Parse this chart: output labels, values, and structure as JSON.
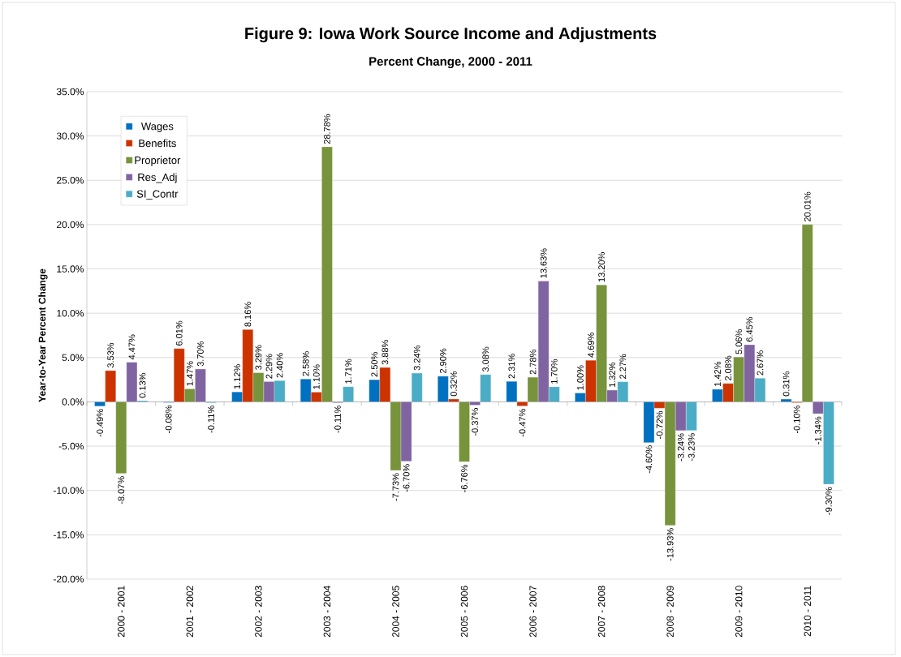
{
  "chart_data": {
    "type": "bar",
    "title": "Figure 9: Iowa Work Source Income and Adjustments",
    "subtitle": "Percent Change, 2000 - 2011",
    "ylabel": "Year-to-Year Percent Change",
    "categories": [
      "2000 - 2001",
      "2001 - 2002",
      "2002 - 2003",
      "2003 - 2004",
      "2004 - 2005",
      "2005 - 2006",
      "2006 - 2007",
      "2007 - 2008",
      "2008 - 2009",
      "2009 - 2010",
      "2010 - 2011"
    ],
    "series": [
      {
        "name": "Wages",
        "color": "#0070c0",
        "values": [
          -0.49,
          -0.08,
          1.12,
          2.58,
          2.5,
          2.9,
          2.31,
          1.0,
          -4.6,
          1.42,
          0.31
        ],
        "value_labels": [
          "-0.49%",
          "-0.08%",
          "1.12%",
          "2.58%",
          "2.50%",
          "2.90%",
          "2.31%",
          "1.00%",
          "-4.60%",
          "1.42%",
          "0.31%"
        ]
      },
      {
        "name": "Benefits",
        "color": "#cc3300",
        "values": [
          3.53,
          6.01,
          8.16,
          1.1,
          3.88,
          0.32,
          -0.47,
          4.69,
          -0.72,
          2.08,
          -0.1
        ],
        "value_labels": [
          "3.53%",
          "6.01%",
          "8.16%",
          "1.10%",
          "3.88%",
          "0.32%",
          "-0.47%",
          "4.69%",
          "-0.72%",
          "2.08%",
          "-0.10%"
        ]
      },
      {
        "name": "Proprietor",
        "color": "#77933c",
        "values": [
          -8.07,
          1.47,
          3.29,
          28.78,
          -7.73,
          -6.76,
          2.78,
          13.2,
          -13.93,
          5.06,
          20.01
        ],
        "value_labels": [
          "-8.07%",
          "1.47%",
          "3.29%",
          "28.78%",
          "-7.73%",
          "-6.76%",
          "2.78%",
          "13.20%",
          "-13.93%",
          "5.06%",
          "20.01%"
        ]
      },
      {
        "name": "Res_Adj",
        "color": "#8064a2",
        "values": [
          4.47,
          3.7,
          2.29,
          -0.11,
          -6.7,
          -0.37,
          13.63,
          1.32,
          -3.24,
          6.45,
          -1.34
        ],
        "value_labels": [
          "4.47%",
          "3.70%",
          "2.29%",
          "-0.11%",
          "-6.70%",
          "-0.37%",
          "13.63%",
          "1.32%",
          "-3.24%",
          "6.45%",
          "-1.34%"
        ]
      },
      {
        "name": "SI_Contr",
        "color": "#4bacc6",
        "values": [
          0.13,
          -0.11,
          2.4,
          1.71,
          3.24,
          3.08,
          1.7,
          2.27,
          -3.23,
          2.67,
          -9.3
        ],
        "value_labels": [
          "0.13%",
          "-0.11%",
          "2.40%",
          "1.71%",
          "3.24%",
          "3.08%",
          "1.70%",
          "2.27%",
          "-3.23%",
          "2.67%",
          "-9.30%"
        ]
      }
    ],
    "ylim": [
      -20,
      35
    ],
    "yticks": [
      {
        "value": -20,
        "label": "-20.0%"
      },
      {
        "value": -15,
        "label": "-15.0%"
      },
      {
        "value": -10,
        "label": "-10.0%"
      },
      {
        "value": -5,
        "label": "-5.0%"
      },
      {
        "value": 0,
        "label": "0.0%"
      },
      {
        "value": 5,
        "label": "5.0%"
      },
      {
        "value": 10,
        "label": "10.0%"
      },
      {
        "value": 15,
        "label": "15.0%"
      },
      {
        "value": 20,
        "label": "20.0%"
      },
      {
        "value": 25,
        "label": "25.0%"
      },
      {
        "value": 30,
        "label": "30.0%"
      },
      {
        "value": 35,
        "label": "35.0%"
      }
    ],
    "grid": "y",
    "legend": "top left"
  }
}
